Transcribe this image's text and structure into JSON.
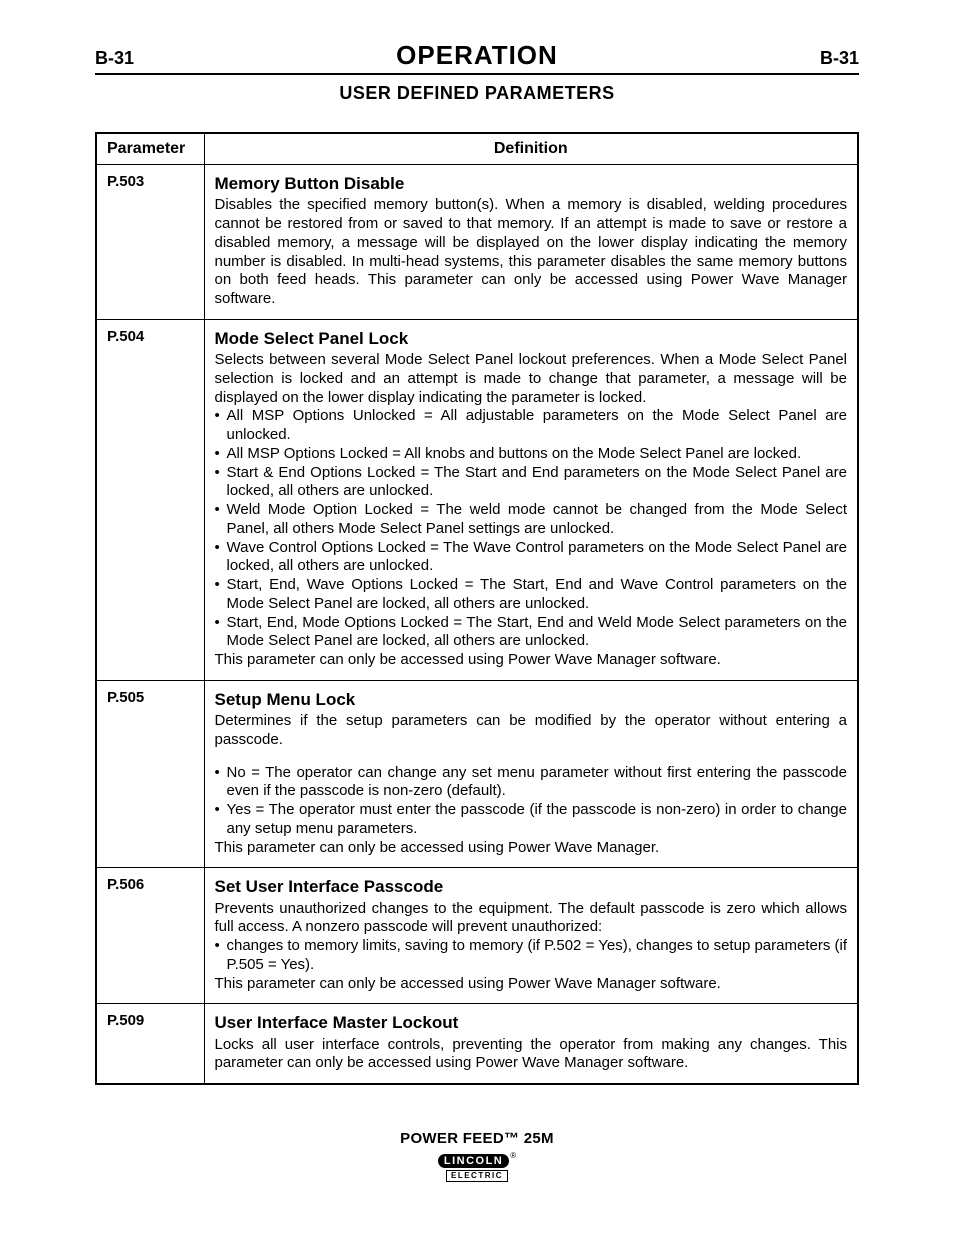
{
  "header": {
    "page_code_left": "B-31",
    "section_title": "OPERATION",
    "page_code_right": "B-31",
    "subtitle": "USER DEFINED PARAMETERS"
  },
  "table": {
    "col_parameter": "Parameter",
    "col_definition": "Definition",
    "rows": [
      {
        "id": "P.503",
        "title": "Memory Button Disable",
        "body": "Disables the specified memory button(s). When a memory is disabled, welding procedures cannot be restored from or saved to that memory. If an attempt is made to save or restore a disabled memory, a message will be displayed on the lower display indicating the memory number is disabled. In multi-head systems, this parameter disables the same memory buttons on both feed heads. This parameter can only be accessed using Power Wave Manager software."
      },
      {
        "id": "P.504",
        "title": "Mode Select Panel Lock",
        "lead": "Selects between several Mode Select Panel lockout preferences. When a Mode Select Panel selection is locked and an attempt is made to change that parameter, a message will be displayed on the lower display indicating the parameter is locked.",
        "opts": [
          "All MSP Options Unlocked = All adjustable parameters on the Mode Select Panel are unlocked.",
          "All MSP Options Locked = All knobs and buttons on the Mode Select Panel are locked.",
          "Start & End Options Locked = The Start and End parameters on the Mode Select Panel are locked, all others are unlocked.",
          "Weld Mode Option Locked = The weld mode cannot be changed from the Mode Select Panel, all others Mode Select Panel settings are unlocked.",
          "Wave Control Options Locked = The Wave Control parameters on the Mode Select Panel are locked, all others are unlocked.",
          "Start, End, Wave Options Locked = The Start, End and Wave Control parameters on the Mode Select Panel are locked, all others are unlocked.",
          "Start, End, Mode Options Locked = The Start, End and Weld Mode Select parameters on the Mode Select Panel are locked, all others are unlocked."
        ],
        "tail": "This parameter can only be accessed using Power Wave Manager software."
      },
      {
        "id": "P.505",
        "title": "Setup Menu Lock",
        "lead": "Determines if the setup parameters can be modified by the operator without entering a passcode.",
        "opts": [
          "No = The operator can change any set menu parameter without first entering the passcode even if the passcode is non-zero (default).",
          "Yes = The operator must enter the passcode (if the passcode is non-zero) in order to change any setup menu parameters."
        ],
        "tail": "This parameter can only be accessed using Power Wave Manager."
      },
      {
        "id": "P.506",
        "title": "Set User Interface Passcode",
        "lead": "Prevents unauthorized changes to the equipment. The default passcode is zero which allows full access. A nonzero passcode will prevent unauthorized:",
        "opts": [
          "changes to memory limits, saving to memory (if P.502 = Yes), changes to setup parameters (if P.505 = Yes)."
        ],
        "tail": "This parameter can only be accessed using Power Wave Manager software."
      },
      {
        "id": "P.509",
        "title": "User Interface Master Lockout",
        "body": "Locks all user interface controls, preventing the operator from making any changes. This parameter can only be accessed using Power Wave Manager software."
      }
    ]
  },
  "footer": {
    "product": "POWER FEED™ 25M",
    "logo_top": "LINCOLN",
    "logo_bot": "ELECTRIC",
    "reg": "®"
  },
  "style": {
    "background_color": "#ffffff",
    "text_color": "#000000",
    "border_color": "#000000",
    "title_fontsize": 26,
    "subtitle_fontsize": 18,
    "body_fontsize": 15,
    "param_fontsize": 16.5,
    "font_family": "Arial, Helvetica, sans-serif"
  }
}
